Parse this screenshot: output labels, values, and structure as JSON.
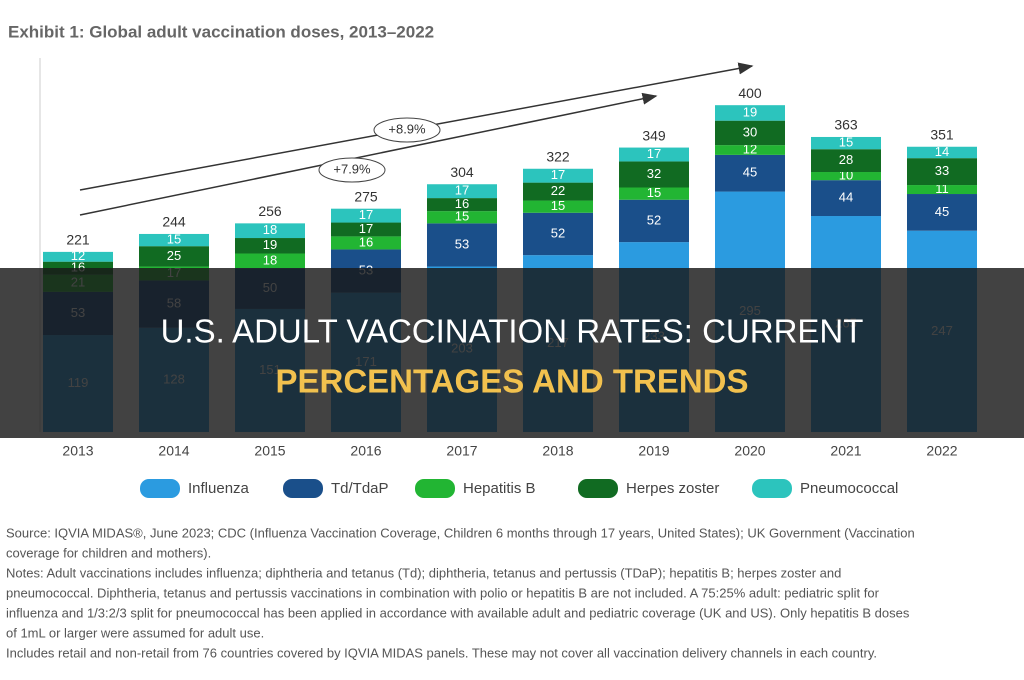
{
  "chart_data": {
    "type": "stacked_bar",
    "title": "Exhibit 1: Global adult vaccination doses, 2013–2022",
    "categories": [
      "2013",
      "2014",
      "2015",
      "2016",
      "2017",
      "2018",
      "2019",
      "2020",
      "2021",
      "2022"
    ],
    "series": [
      {
        "name": "Influenza",
        "color": "#2b9be0",
        "values": [
          119,
          128,
          151,
          171,
          203,
          217,
          233,
          295,
          265,
          247
        ]
      },
      {
        "name": "Td/TdaP",
        "color": "#1a4f8a",
        "values": [
          53,
          58,
          50,
          53,
          53,
          52,
          52,
          45,
          44,
          45
        ]
      },
      {
        "name": "Hepatitis B",
        "color": "#22b533",
        "values": [
          21,
          17,
          18,
          16,
          15,
          15,
          15,
          12,
          10,
          11
        ]
      },
      {
        "name": "Herpes zoster",
        "color": "#116b22",
        "values": [
          16,
          25,
          19,
          17,
          16,
          22,
          32,
          30,
          28,
          33
        ]
      },
      {
        "name": "Pneumococcal",
        "color": "#2cc4bd",
        "values": [
          12,
          15,
          18,
          17,
          17,
          17,
          17,
          19,
          15,
          14
        ]
      }
    ],
    "totals": [
      221,
      244,
      256,
      275,
      304,
      322,
      349,
      400,
      363,
      351
    ],
    "ylim": [
      0,
      400
    ],
    "annotations": [
      "+8.9%",
      "+7.9%"
    ],
    "notes": [
      "Source: IQVIA MIDAS®, June 2023; CDC (Influenza Vaccination Coverage, Children 6 months through 17 years, United States); UK Government (Vaccination",
      "coverage for children and mothers).",
      "Notes: Adult vaccinations includes influenza; diphtheria and tetanus (Td); diphtheria, tetanus and pertussis (TDaP); hepatitis B; herpes zoster and",
      "pneumococcal. Diphtheria, tetanus and pertussis vaccinations in combination with polio or hepatitis B are not included. A 75:25% adult: pediatric split for",
      "influenza and 1/3:2/3 split for pneumococcal has been applied in accordance with available adult and pediatric coverage (UK and US). Only hepatitis B doses",
      "of 1mL or larger were assumed for adult use.",
      "Includes retail and non-retail from 76 countries covered by IQVIA MIDAS panels. These may not cover all vaccination delivery channels in each country."
    ]
  },
  "banner": {
    "line1": "U.S. ADULT VACCINATION RATES: CURRENT",
    "line2": "PERCENTAGES AND TRENDS"
  }
}
